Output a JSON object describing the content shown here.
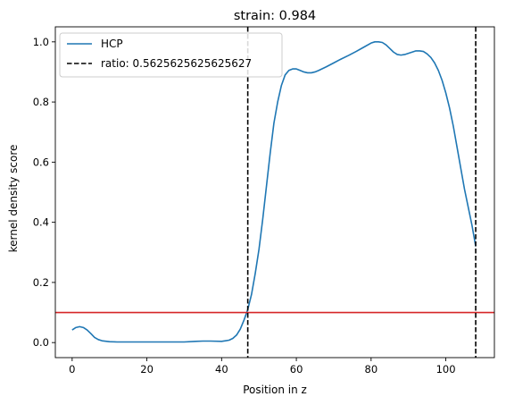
{
  "chart_data": {
    "type": "line",
    "title": "strain: 0.984",
    "xlabel": "Position in z",
    "ylabel": "kernel density score",
    "xlim": [
      -4.5,
      113
    ],
    "ylim": [
      -0.05,
      1.05
    ],
    "xticks": [
      0,
      20,
      40,
      60,
      80,
      100
    ],
    "xtick_labels": [
      "0",
      "20",
      "40",
      "60",
      "80",
      "100"
    ],
    "yticks": [
      0.0,
      0.2,
      0.4,
      0.6,
      0.8,
      1.0
    ],
    "ytick_labels": [
      "0.0",
      "0.2",
      "0.4",
      "0.6",
      "0.8",
      "1.0"
    ],
    "grid": false,
    "legend_position": "top-left",
    "series": [
      {
        "name": "HCP",
        "color": "#1f77b4",
        "style": "solid",
        "x": [
          0,
          1,
          2,
          3,
          4,
          5,
          6,
          7,
          8,
          10,
          12,
          15,
          20,
          25,
          30,
          33,
          35,
          37,
          40,
          42,
          43,
          44,
          45,
          46,
          47,
          48,
          49,
          50,
          51,
          52,
          53,
          54,
          55,
          56,
          57,
          58,
          59,
          60,
          61,
          62,
          63,
          64,
          65,
          66,
          68,
          70,
          72,
          74,
          76,
          78,
          80,
          81,
          82,
          83,
          84,
          85,
          86,
          87,
          88,
          89,
          90,
          91,
          92,
          93,
          94,
          95,
          96,
          97,
          98,
          99,
          100,
          101,
          102,
          103,
          104,
          105,
          106,
          107,
          108
        ],
        "y": [
          0.042,
          0.05,
          0.053,
          0.05,
          0.042,
          0.03,
          0.017,
          0.01,
          0.006,
          0.003,
          0.002,
          0.002,
          0.002,
          0.002,
          0.002,
          0.004,
          0.005,
          0.005,
          0.004,
          0.008,
          0.014,
          0.025,
          0.045,
          0.075,
          0.11,
          0.16,
          0.23,
          0.31,
          0.41,
          0.52,
          0.63,
          0.73,
          0.8,
          0.855,
          0.89,
          0.905,
          0.91,
          0.91,
          0.905,
          0.9,
          0.897,
          0.897,
          0.9,
          0.905,
          0.917,
          0.93,
          0.943,
          0.955,
          0.968,
          0.982,
          0.996,
          1.0,
          1.0,
          0.998,
          0.99,
          0.978,
          0.966,
          0.958,
          0.956,
          0.958,
          0.962,
          0.966,
          0.97,
          0.97,
          0.968,
          0.96,
          0.948,
          0.93,
          0.905,
          0.872,
          0.83,
          0.78,
          0.72,
          0.65,
          0.58,
          0.51,
          0.45,
          0.39,
          0.32
        ]
      },
      {
        "name": "ratio: 0.5625625625625627",
        "color": "#000000",
        "style": "dashed",
        "vlines": [
          47,
          108
        ]
      }
    ],
    "hlines": [
      {
        "y": 0.1,
        "color": "#d62728"
      }
    ]
  }
}
